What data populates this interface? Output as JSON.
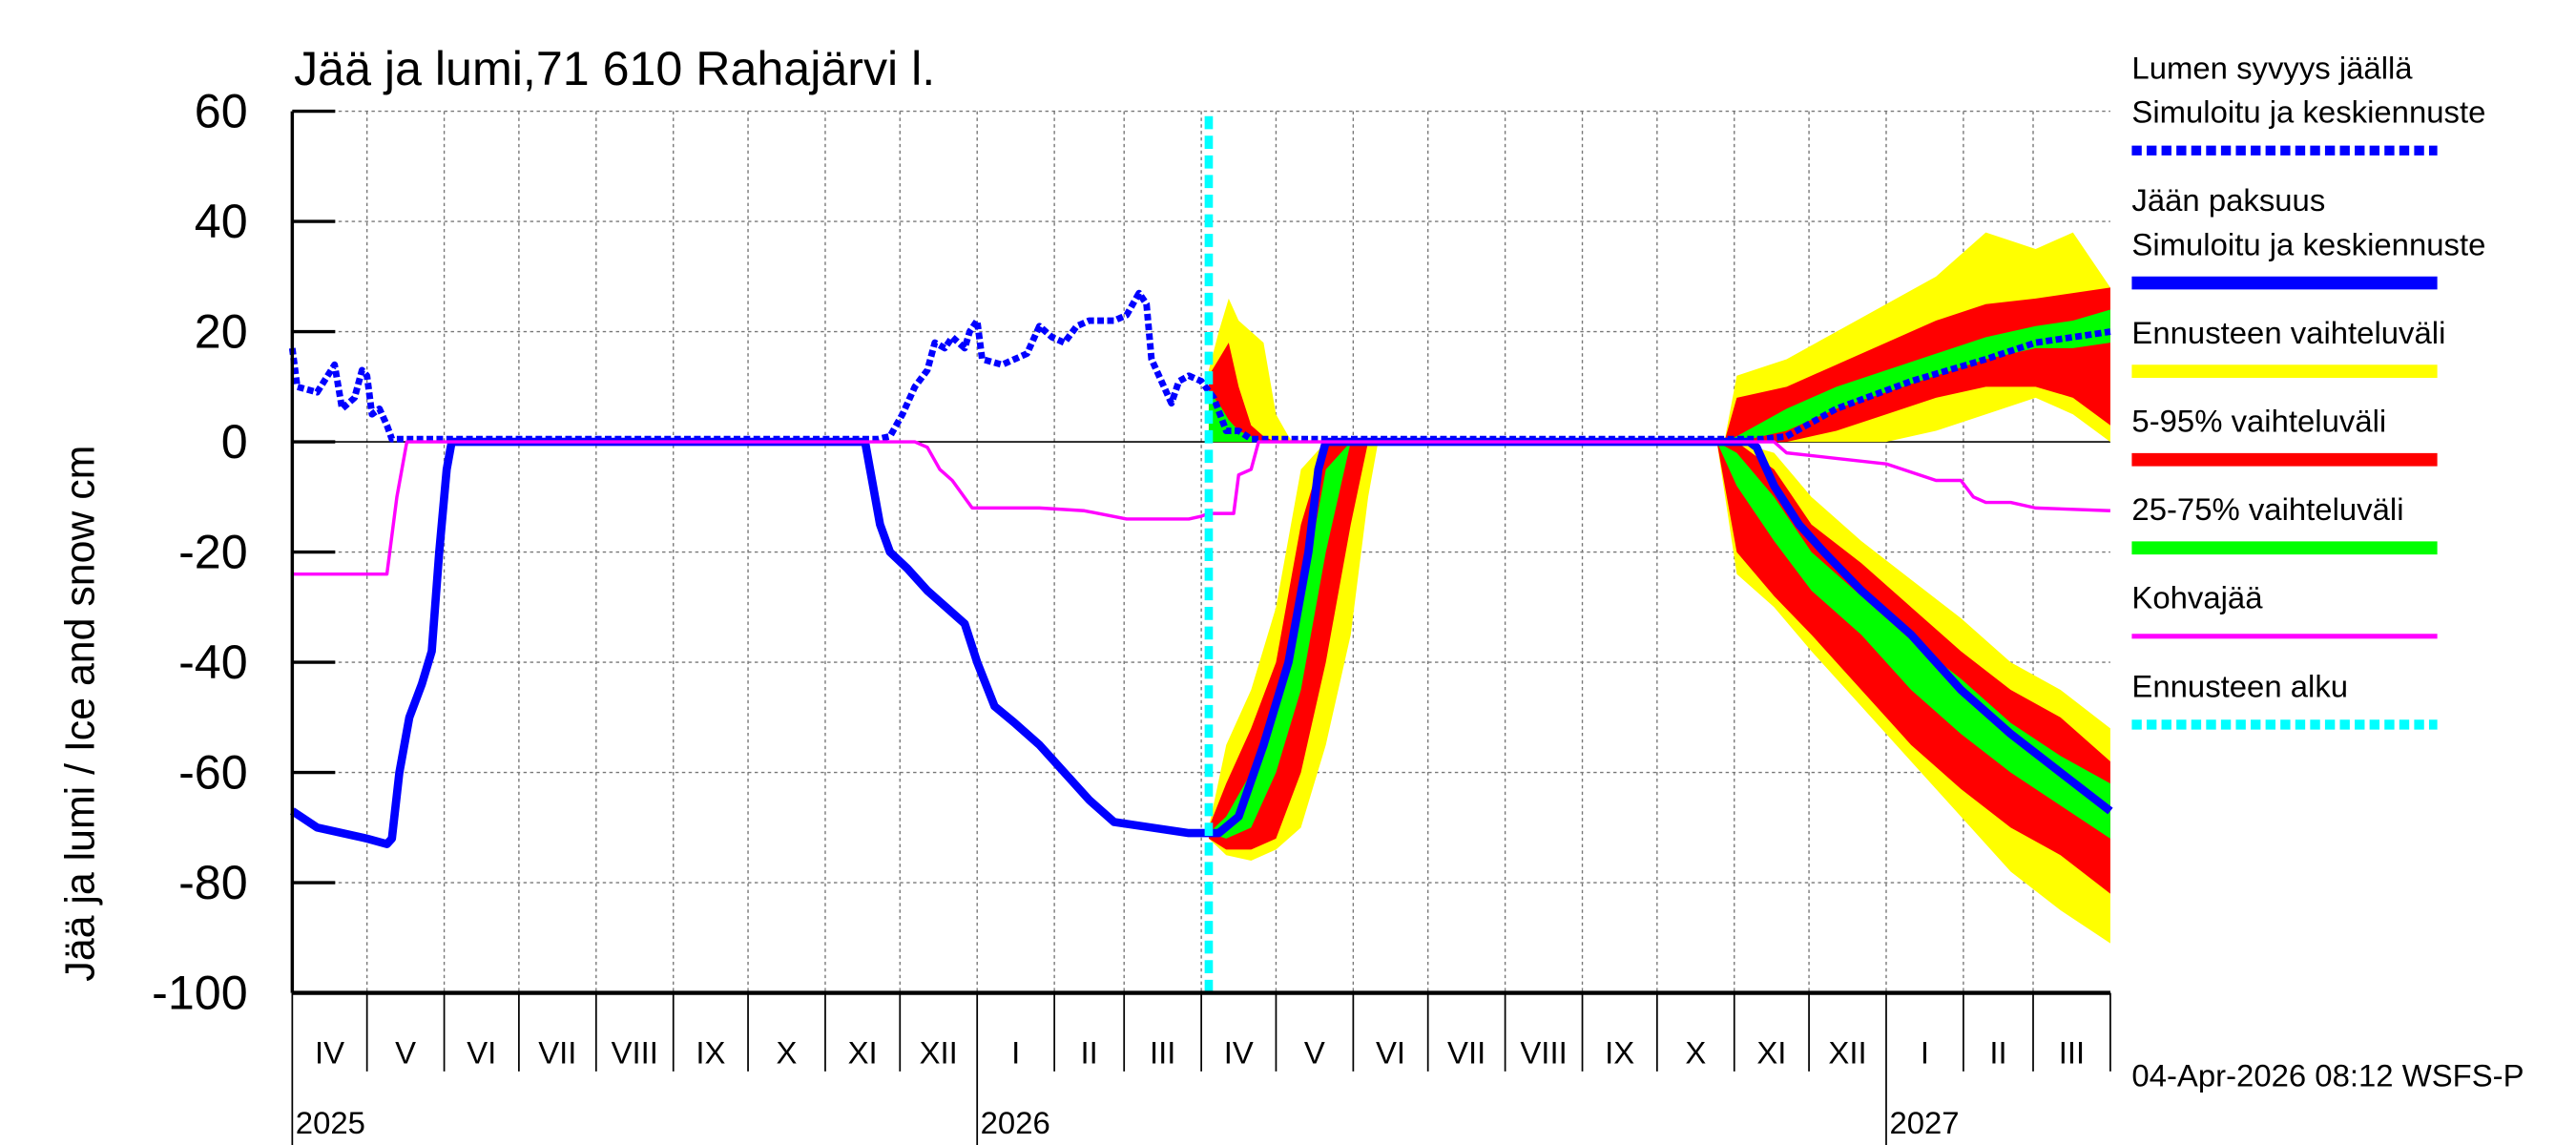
{
  "chart_data": {
    "type": "line",
    "title": "Jää ja lumi,71 610 Rahajärvi l.",
    "ylabel": "Jää ja lumi / Ice and snow    cm",
    "ylim": [
      -100,
      60
    ],
    "yticks": [
      60,
      40,
      20,
      0,
      -20,
      -40,
      -60,
      -80,
      -100
    ],
    "x_unit": "days since 2025-04-01",
    "xlim": [
      0,
      730
    ],
    "month_labels": [
      "IV",
      "V",
      "VI",
      "VII",
      "VIII",
      "IX",
      "X",
      "XI",
      "XII",
      "I",
      "II",
      "III",
      "IV",
      "V",
      "VI",
      "VII",
      "VIII",
      "IX",
      "X",
      "XI",
      "XII",
      "I",
      "II",
      "III"
    ],
    "year_labels": [
      {
        "label": "2025",
        "month_index": 0
      },
      {
        "label": "2026",
        "month_index": 9
      },
      {
        "label": "2027",
        "month_index": 21
      }
    ],
    "footer": "04-Apr-2026 08:12 WSFS-P",
    "forecast_start_day": 368,
    "legend": [
      {
        "lines": [
          "Lumen syvyys jäällä",
          "Simuloitu ja keskiennuste"
        ],
        "color": "#0000ff",
        "style": "dashed"
      },
      {
        "lines": [
          "Jään paksuus",
          "Simuloitu ja keskiennuste"
        ],
        "color": "#0000ff",
        "style": "thick"
      },
      {
        "lines": [
          "Ennusteen vaihteluväli"
        ],
        "color": "#ffff00",
        "style": "thick"
      },
      {
        "lines": [
          "5-95% vaihteluväli"
        ],
        "color": "#ff0000",
        "style": "thick"
      },
      {
        "lines": [
          "25-75% vaihteluväli"
        ],
        "color": "#00ff00",
        "style": "thick"
      },
      {
        "lines": [
          "Kohvajää"
        ],
        "color": "#ff00ff",
        "style": "thin"
      },
      {
        "lines": [
          "Ennusteen alku"
        ],
        "color": "#00ffff",
        "style": "dashed"
      }
    ],
    "bands_columns": [
      "day",
      "yellow_a",
      "red_a",
      "green_a",
      "green_b",
      "red_b",
      "yellow_b"
    ],
    "bands": [
      {
        "name": "spring-snow",
        "rows": [
          [
            368,
            0,
            0,
            0,
            9,
            12,
            13
          ],
          [
            372,
            0,
            0,
            0,
            7,
            15,
            20
          ],
          [
            376,
            0,
            0,
            0,
            4,
            18,
            26
          ],
          [
            380,
            0,
            0,
            0,
            2,
            10,
            22
          ],
          [
            385,
            0,
            0,
            0,
            1,
            3,
            20
          ],
          [
            390,
            0,
            0,
            0,
            0,
            1,
            18
          ],
          [
            395,
            0,
            0,
            0,
            0,
            0,
            5
          ],
          [
            400,
            0,
            0,
            0,
            0,
            0,
            1
          ],
          [
            402,
            0,
            0,
            0,
            0,
            0,
            0
          ]
        ]
      },
      {
        "name": "spring-ice",
        "rows": [
          [
            368,
            -70,
            -70,
            -71,
            -71,
            -72,
            -72
          ],
          [
            375,
            -55,
            -62,
            -68,
            -72,
            -74,
            -75
          ],
          [
            385,
            -45,
            -52,
            -60,
            -70,
            -74,
            -76
          ],
          [
            395,
            -30,
            -40,
            -50,
            -60,
            -72,
            -74
          ],
          [
            405,
            -5,
            -15,
            -30,
            -45,
            -60,
            -70
          ],
          [
            415,
            0,
            0,
            -5,
            -20,
            -40,
            -55
          ],
          [
            425,
            0,
            0,
            0,
            0,
            -15,
            -35
          ],
          [
            432,
            0,
            0,
            0,
            0,
            0,
            -10
          ],
          [
            436,
            0,
            0,
            0,
            0,
            0,
            0
          ]
        ]
      },
      {
        "name": "autumn-snow",
        "rows": [
          [
            575,
            0,
            0,
            0,
            0,
            0,
            0
          ],
          [
            580,
            0,
            0,
            0,
            1,
            8,
            12
          ],
          [
            600,
            0,
            0,
            2,
            6,
            10,
            15
          ],
          [
            620,
            0,
            2,
            6,
            10,
            14,
            20
          ],
          [
            640,
            0,
            5,
            9,
            13,
            18,
            25
          ],
          [
            660,
            2,
            8,
            12,
            16,
            22,
            30
          ],
          [
            680,
            5,
            10,
            15,
            19,
            25,
            38
          ],
          [
            700,
            8,
            10,
            17,
            21,
            26,
            35
          ],
          [
            715,
            5,
            8,
            17,
            22,
            27,
            38
          ],
          [
            730,
            0,
            3,
            18,
            24,
            28,
            28
          ]
        ]
      },
      {
        "name": "autumn-ice",
        "rows": [
          [
            572,
            0,
            0,
            0,
            0,
            0,
            0
          ],
          [
            580,
            0,
            0,
            -2,
            -8,
            -20,
            -24
          ],
          [
            595,
            -2,
            -5,
            -10,
            -18,
            -28,
            -30
          ],
          [
            610,
            -10,
            -15,
            -20,
            -27,
            -35,
            -38
          ],
          [
            630,
            -18,
            -22,
            -28,
            -35,
            -45,
            -48
          ],
          [
            650,
            -25,
            -30,
            -36,
            -45,
            -55,
            -58
          ],
          [
            670,
            -32,
            -38,
            -43,
            -53,
            -63,
            -68
          ],
          [
            690,
            -40,
            -45,
            -51,
            -60,
            -70,
            -78
          ],
          [
            710,
            -45,
            -50,
            -57,
            -66,
            -75,
            -85
          ],
          [
            730,
            -52,
            -58,
            -62,
            -72,
            -82,
            -91
          ]
        ]
      }
    ],
    "series": [
      {
        "name": "Lumen syvyys jäällä",
        "color": "#0000ff",
        "style": "dashed",
        "points": [
          [
            0,
            17
          ],
          [
            2,
            10
          ],
          [
            10,
            9
          ],
          [
            17,
            14
          ],
          [
            20,
            6
          ],
          [
            25,
            8
          ],
          [
            28,
            13
          ],
          [
            30,
            12
          ],
          [
            32,
            5
          ],
          [
            35,
            6
          ],
          [
            38,
            3
          ],
          [
            40,
            0.5
          ],
          [
            235,
            0.5
          ],
          [
            240,
            1
          ],
          [
            245,
            5
          ],
          [
            250,
            10
          ],
          [
            255,
            13
          ],
          [
            258,
            18
          ],
          [
            262,
            17
          ],
          [
            265,
            19
          ],
          [
            270,
            17
          ],
          [
            272,
            20
          ],
          [
            275,
            22
          ],
          [
            277,
            15
          ],
          [
            285,
            14
          ],
          [
            295,
            16
          ],
          [
            300,
            21
          ],
          [
            305,
            19
          ],
          [
            310,
            18
          ],
          [
            315,
            21
          ],
          [
            320,
            22
          ],
          [
            330,
            22
          ],
          [
            335,
            23
          ],
          [
            340,
            27
          ],
          [
            343,
            25
          ],
          [
            345,
            15
          ],
          [
            350,
            10
          ],
          [
            353,
            7
          ],
          [
            356,
            11
          ],
          [
            360,
            12
          ],
          [
            365,
            11
          ],
          [
            370,
            8
          ],
          [
            375,
            2
          ],
          [
            380,
            2
          ],
          [
            385,
            0.5
          ],
          [
            590,
            0.5
          ],
          [
            600,
            1
          ],
          [
            620,
            6
          ],
          [
            650,
            11
          ],
          [
            680,
            15
          ],
          [
            700,
            18
          ],
          [
            730,
            20
          ]
        ]
      },
      {
        "name": "Jään paksuus",
        "color": "#0000ff",
        "style": "thick",
        "points": [
          [
            0,
            -67
          ],
          [
            10,
            -70
          ],
          [
            20,
            -71
          ],
          [
            30,
            -72
          ],
          [
            38,
            -73
          ],
          [
            40,
            -72
          ],
          [
            43,
            -60
          ],
          [
            47,
            -50
          ],
          [
            52,
            -44
          ],
          [
            56,
            -38
          ],
          [
            59,
            -20
          ],
          [
            62,
            -5
          ],
          [
            64,
            0
          ],
          [
            230,
            0
          ],
          [
            232,
            -5
          ],
          [
            236,
            -15
          ],
          [
            240,
            -20
          ],
          [
            247,
            -23
          ],
          [
            255,
            -27
          ],
          [
            260,
            -29
          ],
          [
            270,
            -33
          ],
          [
            275,
            -40
          ],
          [
            282,
            -48
          ],
          [
            290,
            -51
          ],
          [
            300,
            -55
          ],
          [
            310,
            -60
          ],
          [
            320,
            -65
          ],
          [
            330,
            -69
          ],
          [
            345,
            -70
          ],
          [
            360,
            -71
          ],
          [
            372,
            -71
          ],
          [
            380,
            -68
          ],
          [
            390,
            -55
          ],
          [
            400,
            -40
          ],
          [
            408,
            -20
          ],
          [
            412,
            -5
          ],
          [
            415,
            0
          ],
          [
            585,
            0
          ],
          [
            588,
            -1
          ],
          [
            595,
            -8
          ],
          [
            605,
            -15
          ],
          [
            615,
            -20
          ],
          [
            630,
            -27
          ],
          [
            650,
            -35
          ],
          [
            670,
            -45
          ],
          [
            690,
            -53
          ],
          [
            710,
            -60
          ],
          [
            730,
            -67
          ]
        ]
      },
      {
        "name": "Kohvajää",
        "color": "#ff00ff",
        "style": "thin",
        "points": [
          [
            0,
            -24
          ],
          [
            38,
            -24
          ],
          [
            42,
            -10
          ],
          [
            46,
            0
          ],
          [
            250,
            0
          ],
          [
            255,
            -1
          ],
          [
            260,
            -5
          ],
          [
            265,
            -7
          ],
          [
            273,
            -12
          ],
          [
            300,
            -12
          ],
          [
            318,
            -12.5
          ],
          [
            335,
            -14
          ],
          [
            360,
            -14
          ],
          [
            365,
            -13.5
          ],
          [
            368,
            -13
          ],
          [
            378,
            -13
          ],
          [
            380,
            -6
          ],
          [
            385,
            -5
          ],
          [
            388,
            0
          ],
          [
            595,
            0
          ],
          [
            600,
            -2
          ],
          [
            620,
            -3
          ],
          [
            640,
            -4
          ],
          [
            660,
            -7
          ],
          [
            670,
            -7
          ],
          [
            675,
            -10
          ],
          [
            680,
            -11
          ],
          [
            690,
            -11
          ],
          [
            700,
            -12
          ],
          [
            730,
            -12.5
          ]
        ]
      }
    ],
    "colors": {
      "yellow": "#ffff00",
      "red": "#ff0000",
      "green": "#00ff00",
      "forecast_start": "#00ffff",
      "grid": "#888888"
    }
  }
}
